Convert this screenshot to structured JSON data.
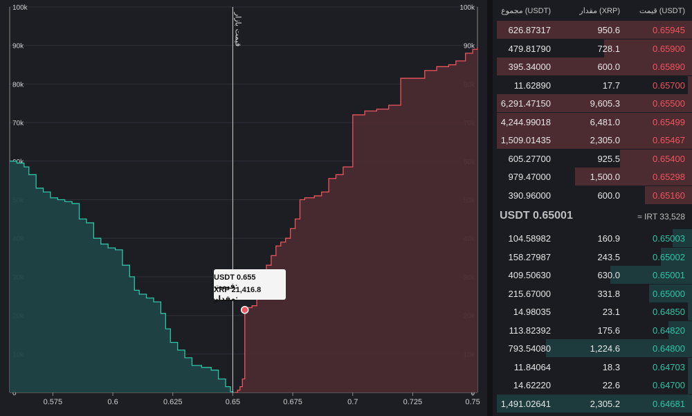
{
  "chart_data": {
    "type": "area",
    "xlim": [
      0.557,
      0.752
    ],
    "ylim": [
      0,
      100000
    ],
    "x_ticks": [
      "0.575",
      "0.6",
      "0.625",
      "0.65",
      "0.675",
      "0.7",
      "0.725",
      "0.75"
    ],
    "y_ticks": [
      "0",
      "10k",
      "20k",
      "30k",
      "40k",
      "50k",
      "60k",
      "70k",
      "80k",
      "90k",
      "100k"
    ],
    "market_price_x": 0.65,
    "market_price_label": "قیمت بازار",
    "grid": true,
    "series": [
      {
        "side": "bid",
        "color": "#2ec4a7",
        "points": [
          [
            0.557,
            60000
          ],
          [
            0.56,
            59500
          ],
          [
            0.563,
            58500
          ],
          [
            0.565,
            56500
          ],
          [
            0.568,
            53000
          ],
          [
            0.571,
            52000
          ],
          [
            0.574,
            50500
          ],
          [
            0.577,
            50000
          ],
          [
            0.58,
            49500
          ],
          [
            0.583,
            49000
          ],
          [
            0.586,
            45000
          ],
          [
            0.589,
            44000
          ],
          [
            0.592,
            40000
          ],
          [
            0.595,
            38500
          ],
          [
            0.598,
            37500
          ],
          [
            0.601,
            37000
          ],
          [
            0.604,
            33000
          ],
          [
            0.607,
            30000
          ],
          [
            0.609,
            26500
          ],
          [
            0.611,
            25500
          ],
          [
            0.614,
            24500
          ],
          [
            0.617,
            23500
          ],
          [
            0.62,
            20500
          ],
          [
            0.622,
            16500
          ],
          [
            0.624,
            13000
          ],
          [
            0.627,
            11000
          ],
          [
            0.63,
            9000
          ],
          [
            0.633,
            7000
          ],
          [
            0.637,
            6500
          ],
          [
            0.641,
            5800
          ],
          [
            0.644,
            3500
          ],
          [
            0.647,
            1500
          ],
          [
            0.649,
            200
          ],
          [
            0.65,
            0
          ]
        ]
      },
      {
        "side": "ask",
        "color": "#f0545c",
        "points": [
          [
            0.651,
            0
          ],
          [
            0.652,
            600
          ],
          [
            0.653,
            1500
          ],
          [
            0.654,
            3500
          ],
          [
            0.655,
            21416.8
          ],
          [
            0.656,
            22000
          ],
          [
            0.658,
            22500
          ],
          [
            0.66,
            29000
          ],
          [
            0.662,
            30000
          ],
          [
            0.664,
            33000
          ],
          [
            0.666,
            35500
          ],
          [
            0.668,
            38000
          ],
          [
            0.67,
            39000
          ],
          [
            0.672,
            40000
          ],
          [
            0.674,
            42500
          ],
          [
            0.676,
            45000
          ],
          [
            0.678,
            50000
          ],
          [
            0.68,
            50500
          ],
          [
            0.684,
            51000
          ],
          [
            0.687,
            52000
          ],
          [
            0.69,
            55500
          ],
          [
            0.693,
            56500
          ],
          [
            0.696,
            58500
          ],
          [
            0.7,
            59000
          ],
          [
            0.7,
            72000
          ],
          [
            0.705,
            73000
          ],
          [
            0.71,
            73500
          ],
          [
            0.715,
            74500
          ],
          [
            0.72,
            81500
          ],
          [
            0.73,
            83500
          ],
          [
            0.735,
            84500
          ],
          [
            0.74,
            85000
          ],
          [
            0.743,
            86000
          ],
          [
            0.747,
            88000
          ],
          [
            0.75,
            89000
          ],
          [
            0.752,
            89500
          ]
        ]
      }
    ]
  },
  "tooltip": {
    "price_label": "قیمت:",
    "price_value": "USDT 0.655",
    "amount_label": "مقدار:",
    "amount_value": "XRP 21,416.8",
    "point_x": 0.655,
    "point_y": 21416.8
  },
  "order_book": {
    "headers": {
      "price": "قیمت (USDT)",
      "amount": "مقدار (XRP)",
      "total": "مجموع (USDT)"
    },
    "asks": [
      {
        "price": "0.65945",
        "amount": "950.6",
        "total": "626.87317",
        "depth": 1.0
      },
      {
        "price": "0.65900",
        "amount": "728.1",
        "total": "479.81790",
        "depth": 0.45
      },
      {
        "price": "0.65890",
        "amount": "600.0",
        "total": "395.34000",
        "depth": 1.0
      },
      {
        "price": "0.65700",
        "amount": "17.7",
        "total": "11.62890",
        "depth": 0.02
      },
      {
        "price": "0.65500",
        "amount": "9,605.3",
        "total": "6,291.47150",
        "depth": 1.0
      },
      {
        "price": "0.65499",
        "amount": "6,481.0",
        "total": "4,244.99018",
        "depth": 1.0
      },
      {
        "price": "0.65467",
        "amount": "2,305.0",
        "total": "1,509.01435",
        "depth": 1.0
      },
      {
        "price": "0.65400",
        "amount": "925.5",
        "total": "605.27700",
        "depth": 0.37
      },
      {
        "price": "0.65298",
        "amount": "1,500.0",
        "total": "979.47000",
        "depth": 0.6
      },
      {
        "price": "0.65160",
        "amount": "600.0",
        "total": "390.96000",
        "depth": 0.24
      }
    ],
    "last_price": "USDT 0.65001",
    "irt_price": "≈ IRT 33,528",
    "bids": [
      {
        "price": "0.65003",
        "amount": "160.9",
        "total": "104.58982",
        "depth": 0.1
      },
      {
        "price": "0.65002",
        "amount": "243.5",
        "total": "158.27987",
        "depth": 0.16
      },
      {
        "price": "0.65001",
        "amount": "630.0",
        "total": "409.50630",
        "depth": 0.42
      },
      {
        "price": "0.65000",
        "amount": "331.8",
        "total": "215.67000",
        "depth": 0.22
      },
      {
        "price": "0.64850",
        "amount": "23.1",
        "total": "14.98035",
        "depth": 0.02
      },
      {
        "price": "0.64820",
        "amount": "175.6",
        "total": "113.82392",
        "depth": 0.12
      },
      {
        "price": "0.64800",
        "amount": "1,224.6",
        "total": "793.54080",
        "depth": 0.75
      },
      {
        "price": "0.64703",
        "amount": "18.3",
        "total": "11.84064",
        "depth": 0.02
      },
      {
        "price": "0.64700",
        "amount": "22.6",
        "total": "14.62220",
        "depth": 0.02
      },
      {
        "price": "0.64681",
        "amount": "2,305.2",
        "total": "1,491.02641",
        "depth": 1.0
      }
    ]
  }
}
